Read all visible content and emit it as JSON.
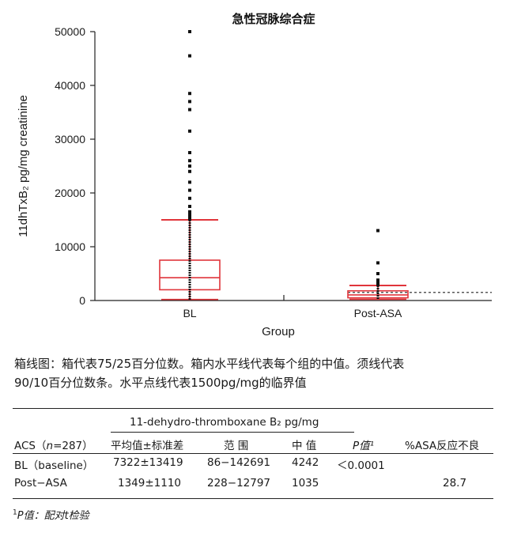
{
  "chart_data": {
    "type": "boxplot",
    "title": "急性冠脉综合症",
    "xlabel": "Group",
    "ylabel": "11dhTxB₂ pg/mg creatinine",
    "ylim": [
      0,
      50000
    ],
    "yticks": [
      0,
      10000,
      20000,
      30000,
      40000,
      50000
    ],
    "categories": [
      "BL",
      "Post-ASA"
    ],
    "threshold": 1500,
    "series": [
      {
        "category": "BL",
        "q1": 2000,
        "median": 4242,
        "q3": 7500,
        "whisker_low": 200,
        "whisker_high": 15000,
        "outliers": [
          50000,
          45500,
          38500,
          37000,
          35500,
          31500,
          27500,
          26000,
          25000,
          24000,
          22000,
          20500,
          19000,
          17500,
          16500,
          16000,
          15500,
          15200
        ]
      },
      {
        "category": "Post-ASA",
        "q1": 500,
        "median": 1035,
        "q3": 1800,
        "whisker_low": 228,
        "whisker_high": 2800,
        "outliers": [
          13000,
          7000,
          5000,
          3800,
          3500,
          3200,
          3000
        ]
      }
    ]
  },
  "caption": {
    "line1": "箱线图：箱代表75/25百分位数。箱内水平线代表每个组的中值。须线代表",
    "line2": "90/10百分位数条。水平点线代表1500pg/mg的临界值"
  },
  "table": {
    "group_header": "11-dehydro-thromboxane B₂ pg/mg",
    "col_acs_prefix": "ACS（",
    "col_acs_n": "n",
    "col_acs_suffix": "=287）",
    "col_mean": "平均值±标准差",
    "col_range": "范 围",
    "col_median": "中 值",
    "col_p": "P值¹",
    "col_asa": "%ASA反应不良",
    "rows": [
      {
        "label": "BL（baseline）",
        "mean": "7322±13419",
        "range": "86−142691",
        "median": "4242",
        "p": "＜0.0001",
        "asa": ""
      },
      {
        "label": "Post−ASA",
        "mean": "1349±1110",
        "range": "228−12797",
        "median": "1035",
        "p": "",
        "asa": "28.7"
      }
    ]
  },
  "footnote": {
    "sup": "1",
    "text": "P值：配对t检验"
  },
  "colors": {
    "box": "#e0353b",
    "outlier": "#111111",
    "axis": "#222222"
  }
}
